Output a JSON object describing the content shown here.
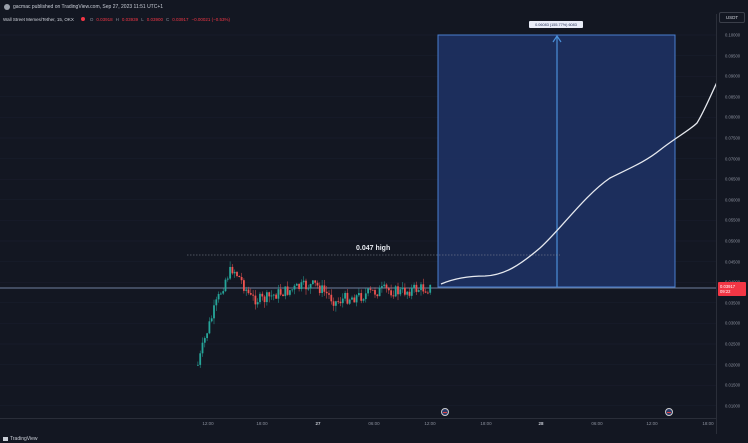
{
  "header": {
    "publisher_text": "gacmac published on TradingView.com, Sep 27, 2023 11:51 UTC+1"
  },
  "legend": {
    "symbol": "Wall Street Memes/Tether, 15, OKX",
    "open_key": "O",
    "open": "0.03918",
    "high_key": "H",
    "high": "0.03939",
    "low_key": "L",
    "low": "0.03900",
    "close_key": "C",
    "close": "0.03917",
    "change": "−0.00021 (−0.53%)"
  },
  "price_axis": {
    "currency": "USDT",
    "labels": [
      "0.10000",
      "0.09500",
      "0.09000",
      "0.08500",
      "0.08000",
      "0.07500",
      "0.07000",
      "0.06500",
      "0.06000",
      "0.05500",
      "0.05000",
      "0.04500",
      "0.04000",
      "0.03500",
      "0.03000",
      "0.02500",
      "0.02000",
      "0.01500",
      "0.01000"
    ],
    "current_price": "0.03917",
    "countdown": "09:22"
  },
  "time_axis": {
    "labels": [
      "12:00",
      "18:00",
      "27",
      "06:00",
      "12:00",
      "18:00",
      "28",
      "06:00",
      "12:00",
      "18:00"
    ]
  },
  "annotations": {
    "high_text": "0.047 high",
    "measure_text": "0.06083 (155.77%) 6083"
  },
  "colors": {
    "background": "#131722",
    "up": "#26a69a",
    "down": "#ef5350",
    "projection_fill": "#1e3366",
    "projection_line": "#4a90d9"
  },
  "footer": {
    "brand": "TradingView"
  }
}
